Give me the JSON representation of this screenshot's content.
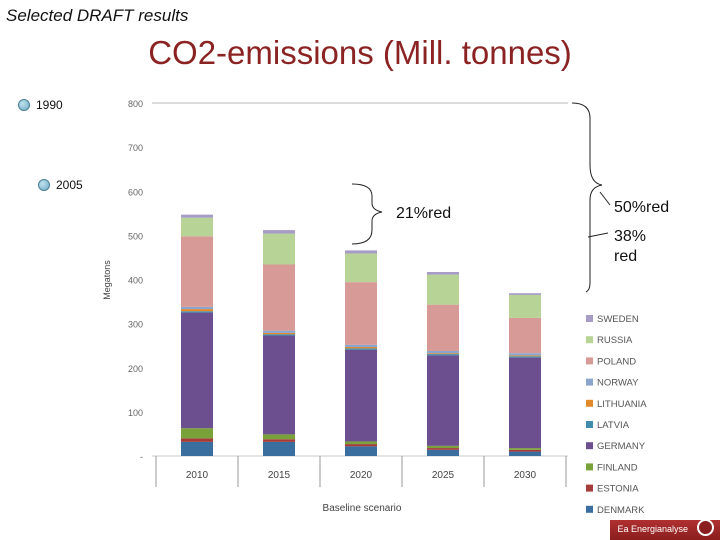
{
  "header_label": "Selected DRAFT results",
  "title": "CO2-emissions (Mill. tonnes)",
  "markers": [
    {
      "label": "1990",
      "value": 800
    },
    {
      "label": "2005",
      "value": 605
    }
  ],
  "annotations": {
    "red21": "21%red",
    "red50": "50%red",
    "red38_line1": "38%",
    "red38_line2": "red"
  },
  "footer": {
    "brand": "Ea Energianalyse"
  },
  "colors": {
    "DENMARK": "#3a6e9e",
    "ESTONIA": "#a53c3a",
    "FINLAND": "#7aa23b",
    "GERMANY": "#6b4f8f",
    "LATVIA": "#3f8cae",
    "LITHUANIA": "#e08a2c",
    "NORWAY": "#8aa6cf",
    "POLAND": "#d79a96",
    "RUSSIA": "#b7d396",
    "SWEDEN": "#a79cc6"
  },
  "chart_data": {
    "type": "bar",
    "stacked": true,
    "categories": [
      "2010",
      "2015",
      "2020",
      "2025",
      "2030"
    ],
    "xlabel": "Baseline scenario",
    "ylabel": "Megatons",
    "ylim": [
      0,
      800
    ],
    "yticks": [
      "-",
      "100",
      "200",
      "300",
      "400",
      "500",
      "600",
      "700",
      "800"
    ],
    "grid": "top gridline only",
    "legend_position": "right",
    "series": [
      {
        "name": "DENMARK",
        "values": [
          32,
          32,
          22,
          14,
          10
        ]
      },
      {
        "name": "ESTONIA",
        "values": [
          8,
          6,
          5,
          4,
          4
        ]
      },
      {
        "name": "FINLAND",
        "values": [
          23,
          11,
          6,
          5,
          4
        ]
      },
      {
        "name": "GERMANY",
        "values": [
          262,
          224,
          208,
          205,
          205
        ]
      },
      {
        "name": "LATVIA",
        "values": [
          3,
          3,
          3,
          3,
          3
        ]
      },
      {
        "name": "LITHUANIA",
        "values": [
          5,
          3,
          3,
          2,
          2
        ]
      },
      {
        "name": "NORWAY",
        "values": [
          5,
          5,
          5,
          5,
          5
        ]
      },
      {
        "name": "POLAND",
        "values": [
          160,
          150,
          142,
          105,
          80
        ]
      },
      {
        "name": "RUSSIA",
        "values": [
          42,
          70,
          65,
          68,
          52
        ]
      },
      {
        "name": "SWEDEN",
        "values": [
          7,
          8,
          7,
          6,
          4
        ]
      }
    ],
    "legend_order": [
      "SWEDEN",
      "RUSSIA",
      "POLAND",
      "NORWAY",
      "LITHUANIA",
      "LATVIA",
      "GERMANY",
      "FINLAND",
      "ESTONIA",
      "DENMARK"
    ]
  }
}
